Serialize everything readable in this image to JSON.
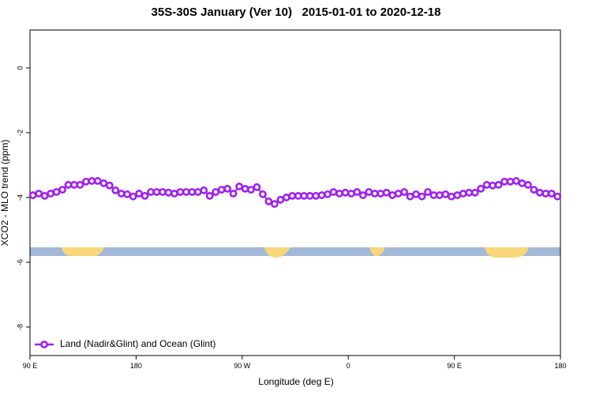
{
  "chart_data": {
    "type": "line",
    "title": "35S-30S January (Ver 10)   2015-01-01 to 2020-12-18",
    "x_label": "Longitude (deg E)",
    "y_label": "XCO2 - MLO trend (ppm)",
    "x": [
      92.5,
      97.5,
      102.5,
      107.5,
      112.5,
      117.5,
      122.5,
      127.5,
      132.5,
      137.5,
      142.5,
      147.5,
      152.5,
      157.5,
      162.5,
      167.5,
      172.5,
      177.5,
      182.5,
      187.5,
      192.5,
      197.5,
      202.5,
      207.5,
      212.5,
      217.5,
      222.5,
      227.5,
      232.5,
      237.5,
      242.5,
      247.5,
      252.5,
      257.5,
      262.5,
      267.5,
      272.5,
      277.5,
      282.5,
      287.5,
      292.5,
      297.5,
      302.5,
      307.5,
      312.5,
      317.5,
      322.5,
      327.5,
      332.5,
      337.5,
      342.5,
      347.5,
      352.5,
      357.5,
      362.5,
      367.5,
      372.5,
      377.5,
      382.5,
      387.5,
      392.5,
      397.5,
      402.5,
      407.5,
      412.5,
      417.5,
      422.5,
      427.5,
      432.5,
      437.5,
      442.5,
      447.5,
      452.5,
      457.5,
      462.5,
      467.5,
      472.5,
      477.5,
      482.5,
      487.5,
      492.5,
      497.5,
      502.5,
      507.5,
      512.5,
      517.5,
      522.5,
      527.5,
      532.5,
      537.5
    ],
    "series": [
      {
        "name": "Land (Nadir&Glint) and Ocean (Glint)",
        "color": "#a020f0",
        "values": [
          -3.93,
          -3.88,
          -3.95,
          -3.88,
          -3.83,
          -3.76,
          -3.61,
          -3.61,
          -3.61,
          -3.51,
          -3.49,
          -3.49,
          -3.56,
          -3.63,
          -3.78,
          -3.88,
          -3.9,
          -3.97,
          -3.88,
          -3.95,
          -3.83,
          -3.83,
          -3.83,
          -3.85,
          -3.88,
          -3.83,
          -3.83,
          -3.83,
          -3.83,
          -3.78,
          -3.95,
          -3.83,
          -3.76,
          -3.73,
          -3.88,
          -3.66,
          -3.73,
          -3.76,
          -3.68,
          -3.9,
          -4.12,
          -4.2,
          -4.07,
          -4.0,
          -3.95,
          -3.95,
          -3.95,
          -3.95,
          -3.95,
          -3.93,
          -3.9,
          -3.83,
          -3.88,
          -3.85,
          -3.88,
          -3.83,
          -3.93,
          -3.83,
          -3.88,
          -3.88,
          -3.85,
          -3.93,
          -3.88,
          -3.83,
          -3.97,
          -3.9,
          -3.97,
          -3.83,
          -3.93,
          -3.93,
          -3.9,
          -3.97,
          -3.93,
          -3.88,
          -3.85,
          -3.85,
          -3.73,
          -3.61,
          -3.63,
          -3.61,
          -3.51,
          -3.51,
          -3.49,
          -3.56,
          -3.61,
          -3.76,
          -3.85,
          -3.88,
          -3.88,
          -3.97
        ]
      }
    ],
    "xlim": [
      90,
      540
    ],
    "xticks": [
      {
        "value": 90,
        "label": "90 E"
      },
      180,
      {
        "value": 270,
        "label": "90 W"
      },
      {
        "value": 360,
        "label": "0"
      },
      {
        "value": 450,
        "label": "90 E"
      },
      {
        "value": 540,
        "label": "180"
      }
    ],
    "ylim": [
      -8.88,
      1.17
    ],
    "yticks": [
      0,
      -2,
      -4,
      -6,
      -8
    ],
    "legend": "bottomleft"
  }
}
